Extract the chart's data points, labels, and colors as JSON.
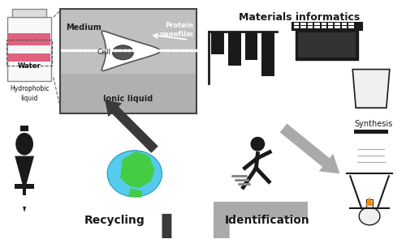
{
  "background_color": "#ffffff",
  "text_recycling": "Recycling",
  "text_identification": "Identification",
  "text_materials": "Materials informatics",
  "text_synthesis": "Synthesis",
  "text_water": "Water",
  "text_hydrophobic": "Hydrophobic\nliquid",
  "text_medium": "Medium",
  "text_protein": "Protein\nnanofilm",
  "text_cell": "Cell",
  "text_ionic": "Ionic liquid",
  "black": "#1a1a1a",
  "dark_arrow": "#3a3a3a",
  "gray_arrow": "#aaaaaa",
  "medium_gray": "#c8c8c8",
  "ionic_gray": "#b0b0b0"
}
